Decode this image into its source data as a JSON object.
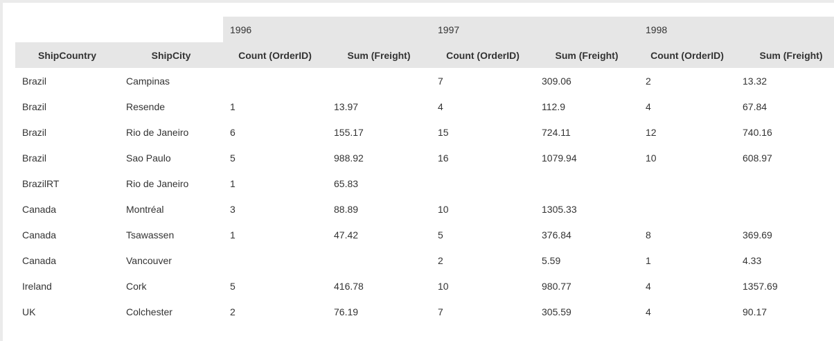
{
  "header": {
    "years": [
      "1996",
      "1997",
      "1998"
    ],
    "columns": [
      "ShipCountry",
      "ShipCity",
      "Count (OrderID)",
      "Sum (Freight)",
      "Count (OrderID)",
      "Sum (Freight)",
      "Count (OrderID)",
      "Sum (Freight)"
    ]
  },
  "rows": [
    {
      "country": "Brazil",
      "city": "Campinas",
      "c1996": "",
      "f1996": "",
      "c1997": "7",
      "f1997": "309.06",
      "c1998": "2",
      "f1998": "13.32"
    },
    {
      "country": "Brazil",
      "city": "Resende",
      "c1996": "1",
      "f1996": "13.97",
      "c1997": "4",
      "f1997": "112.9",
      "c1998": "4",
      "f1998": "67.84"
    },
    {
      "country": "Brazil",
      "city": "Rio de Janeiro",
      "c1996": "6",
      "f1996": "155.17",
      "c1997": "15",
      "f1997": "724.11",
      "c1998": "12",
      "f1998": "740.16"
    },
    {
      "country": "Brazil",
      "city": "Sao Paulo",
      "c1996": "5",
      "f1996": "988.92",
      "c1997": "16",
      "f1997": "1079.94",
      "c1998": "10",
      "f1998": "608.97"
    },
    {
      "country": "BrazilRT",
      "city": "Rio de Janeiro",
      "c1996": "1",
      "f1996": "65.83",
      "c1997": "",
      "f1997": "",
      "c1998": "",
      "f1998": ""
    },
    {
      "country": "Canada",
      "city": "Montréal",
      "c1996": "3",
      "f1996": "88.89",
      "c1997": "10",
      "f1997": "1305.33",
      "c1998": "",
      "f1998": ""
    },
    {
      "country": "Canada",
      "city": "Tsawassen",
      "c1996": "1",
      "f1996": "47.42",
      "c1997": "5",
      "f1997": "376.84",
      "c1998": "8",
      "f1998": "369.69"
    },
    {
      "country": "Canada",
      "city": "Vancouver",
      "c1996": "",
      "f1996": "",
      "c1997": "2",
      "f1997": "5.59",
      "c1998": "1",
      "f1998": "4.33"
    },
    {
      "country": "Ireland",
      "city": "Cork",
      "c1996": "5",
      "f1996": "416.78",
      "c1997": "10",
      "f1997": "980.77",
      "c1998": "4",
      "f1998": "1357.69"
    },
    {
      "country": "UK",
      "city": "Colchester",
      "c1996": "2",
      "f1996": "76.19",
      "c1997": "7",
      "f1997": "305.59",
      "c1998": "4",
      "f1998": "90.17"
    }
  ]
}
